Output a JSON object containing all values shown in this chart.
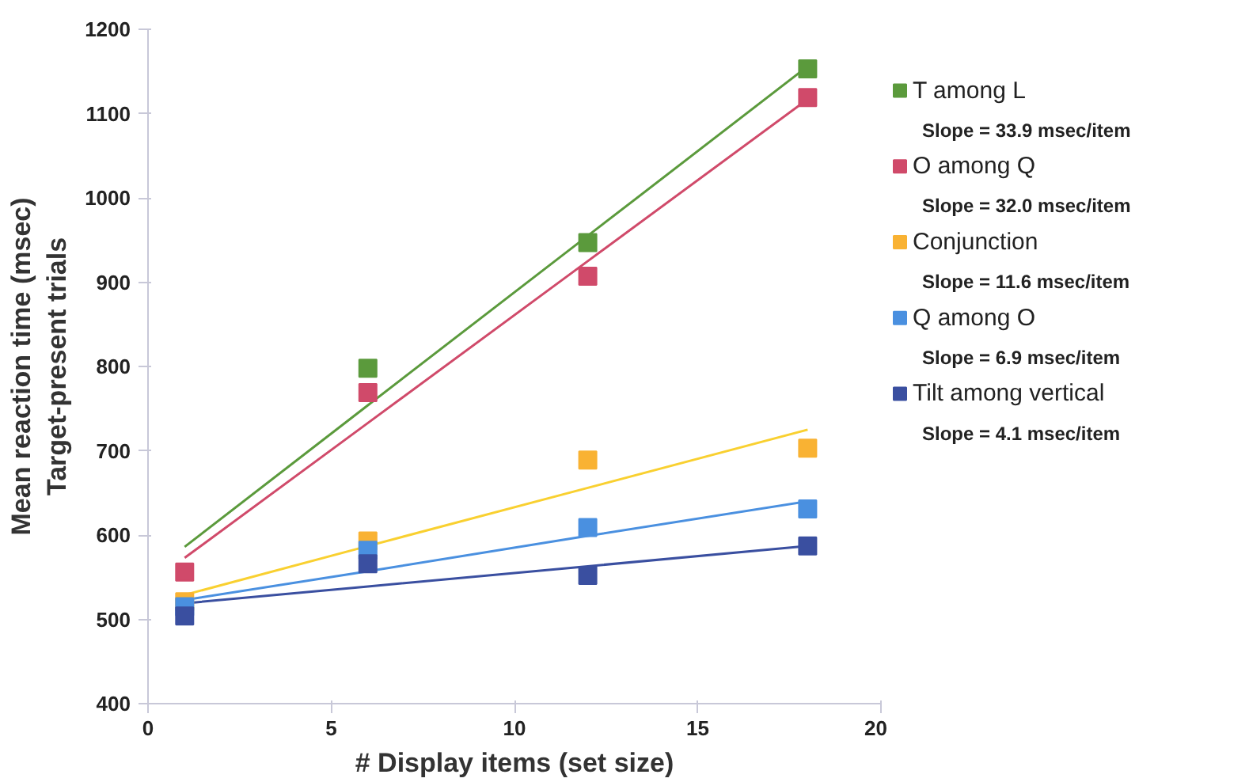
{
  "chart_data": {
    "type": "scatter",
    "xlabel": "# Display items (set size)",
    "ylabel": "Mean reaction time (msec)\nTarget-present trials",
    "x": [
      1,
      6,
      12,
      18
    ],
    "series": [
      {
        "name": "T among L",
        "color": "#5b9a3c",
        "values": [
          null,
          798,
          947,
          1153
        ]
      },
      {
        "name": "O among Q",
        "color": "#d04a6a",
        "values": [
          556,
          769,
          907,
          1119
        ]
      },
      {
        "name": "Conjunction",
        "color": "#f9b233",
        "values": [
          521,
          593,
          689,
          703
        ]
      },
      {
        "name": "Q among O",
        "color": "#4a90e0",
        "values": [
          515,
          582,
          609,
          631
        ]
      },
      {
        "name": "Tilt among vertical",
        "color": "#3a4fa0",
        "values": [
          504,
          566,
          552,
          587
        ]
      },
      {
        "type": "line",
        "marker": "none",
        "color": "#5b9a3c",
        "values": [
          586,
          754,
          955,
          1156
        ]
      },
      {
        "type": "line",
        "marker": "none",
        "color": "#d04a6a",
        "values": [
          573,
          733,
          925,
          1117
        ]
      },
      {
        "type": "line",
        "marker": "none",
        "color": "#f9d030",
        "values": [
          529,
          587,
          656,
          725
        ]
      },
      {
        "type": "line",
        "marker": "none",
        "color": "#4a90e0",
        "values": [
          523,
          557,
          599,
          640
        ]
      },
      {
        "type": "line",
        "marker": "none",
        "color": "#3a4fa0",
        "values": [
          519,
          539,
          563,
          587
        ]
      }
    ],
    "annotations": [
      "Slope = 33.9 msec/item",
      "Slope = 32.0 msec/item",
      "Slope = 11.6 msec/item",
      "Slope = 6.9 msec/item",
      "Slope = 4.1 msec/item"
    ],
    "xlim": [
      0,
      20
    ],
    "xticks": [
      0,
      5,
      10,
      15,
      20
    ],
    "ylim": [
      400,
      1200
    ],
    "yticks": [
      400,
      500,
      600,
      700,
      800,
      900,
      1000,
      1100,
      1200
    ],
    "grid": false,
    "legend": "right",
    "marker": "square",
    "line_style": "solid"
  }
}
